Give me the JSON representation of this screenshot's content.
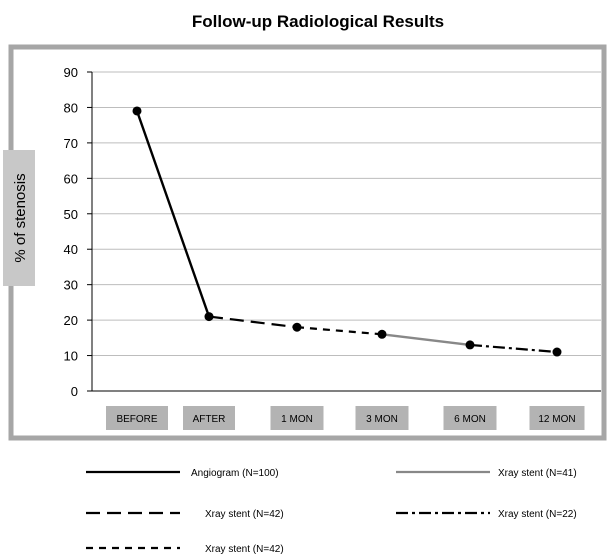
{
  "chart_data": {
    "type": "line",
    "title": "Follow-up Radiological Results",
    "ylabel": "% of stenosis",
    "xlabel": "",
    "categories": [
      "BEFORE",
      "AFTER",
      "1 MON",
      "3 MON",
      "6 MON",
      "12 MON"
    ],
    "ylim": [
      0,
      90
    ],
    "yticks": [
      0,
      10,
      20,
      30,
      40,
      50,
      60,
      70,
      80,
      90
    ],
    "grid": true,
    "legend_position": "bottom",
    "series": [
      {
        "name": "Angiogram (N=100)",
        "style": "solid",
        "color": "#000000",
        "values": [
          79,
          21,
          null,
          null,
          null,
          null
        ]
      },
      {
        "name": "Xray stent (N=41)",
        "style": "solid",
        "color": "#888888",
        "values": [
          null,
          null,
          null,
          16,
          13,
          null
        ]
      },
      {
        "name": "Xray stent (N=42)",
        "style": "long-dash",
        "color": "#000000",
        "values": [
          null,
          21,
          18,
          null,
          null,
          null
        ]
      },
      {
        "name": "Xray stent (N=22)",
        "style": "dash-dot",
        "color": "#000000",
        "values": [
          null,
          null,
          null,
          null,
          13,
          11
        ]
      },
      {
        "name": "Xray stent (N=42)",
        "style": "short-dash",
        "color": "#000000",
        "values": [
          null,
          null,
          18,
          16,
          null,
          null
        ]
      }
    ],
    "points": [
      79,
      21,
      18,
      16,
      13,
      11
    ]
  }
}
